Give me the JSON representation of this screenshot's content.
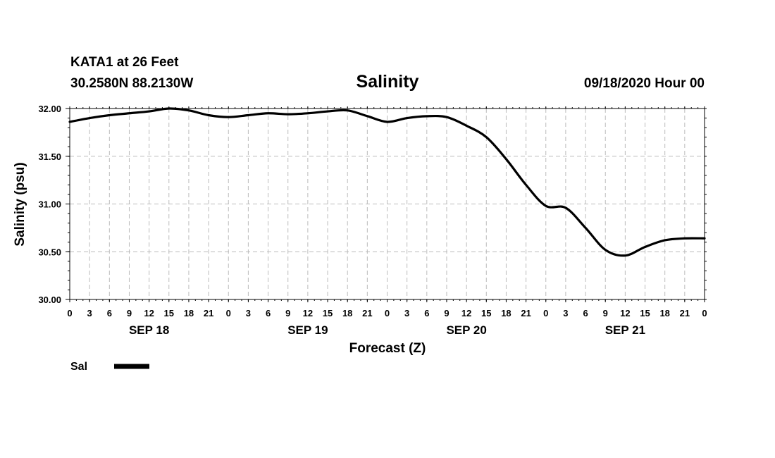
{
  "chart_data": {
    "type": "line",
    "station_line": "KATA1 at 26 Feet",
    "coords_line": "30.2580N 88.2130W",
    "title": "Salinity",
    "datetime_line": "09/18/2020 Hour 00",
    "xlabel": "Forecast (Z)",
    "ylabel": "Salinity (psu)",
    "ylim": [
      30.0,
      32.0
    ],
    "xlim": [
      0,
      96
    ],
    "y_ticks": [
      "30.00",
      "30.50",
      "31.00",
      "31.50",
      "32.00"
    ],
    "y_tick_values": [
      30.0,
      30.5,
      31.0,
      31.5,
      32.0
    ],
    "x_tick_labels": [
      "0",
      "3",
      "6",
      "9",
      "12",
      "15",
      "18",
      "21",
      "0",
      "3",
      "6",
      "9",
      "12",
      "15",
      "18",
      "21",
      "0",
      "3",
      "6",
      "9",
      "12",
      "15",
      "18",
      "21",
      "0",
      "3",
      "6",
      "9",
      "12",
      "15",
      "18",
      "21",
      "0"
    ],
    "day_labels": [
      "SEP 18",
      "SEP 19",
      "SEP 20",
      "SEP 21"
    ],
    "day_label_hours": [
      12,
      36,
      60,
      84
    ],
    "grid": true,
    "legend": [
      {
        "name": "Sal",
        "color": "#000000"
      }
    ],
    "series": [
      {
        "name": "Sal",
        "x": [
          0,
          3,
          6,
          9,
          12,
          15,
          18,
          21,
          24,
          27,
          30,
          33,
          36,
          39,
          42,
          45,
          48,
          51,
          54,
          57,
          60,
          63,
          66,
          69,
          72,
          75,
          78,
          81,
          84,
          87,
          90,
          93,
          96
        ],
        "values": [
          31.86,
          31.9,
          31.93,
          31.95,
          31.97,
          32.0,
          31.98,
          31.93,
          31.91,
          31.93,
          31.95,
          31.94,
          31.95,
          31.97,
          31.98,
          31.92,
          31.86,
          31.9,
          31.92,
          31.91,
          31.82,
          31.7,
          31.47,
          31.2,
          30.98,
          30.96,
          30.75,
          30.52,
          30.46,
          30.55,
          30.62,
          30.64,
          30.64
        ]
      }
    ]
  }
}
